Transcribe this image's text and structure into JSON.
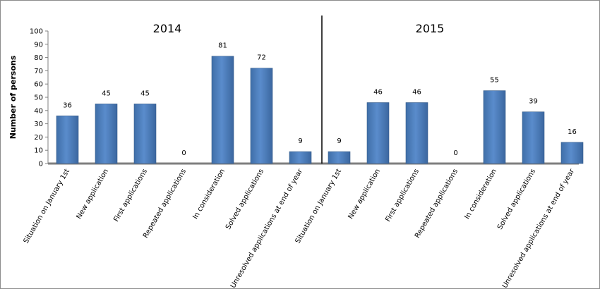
{
  "chart_data": {
    "type": "bar",
    "ylabel": "Number of persons",
    "ylim": [
      0,
      100
    ],
    "yticks": [
      0,
      10,
      20,
      30,
      40,
      50,
      60,
      70,
      80,
      90,
      100
    ],
    "grid": false,
    "legend": "none",
    "bar_color": "#4f81bd",
    "panels": [
      {
        "title": "2014",
        "categories": [
          "Situation on January 1st",
          "New application",
          "First applications",
          "Repeated applications",
          "In consideration",
          "Solved applications",
          "Unresolved applications at end of year"
        ],
        "values": [
          36,
          45,
          45,
          0,
          81,
          72,
          9
        ]
      },
      {
        "title": "2015",
        "categories": [
          "Situation on January 1st",
          "New application",
          "First applications",
          "Repeated applications",
          "In consideration",
          "Solved applications",
          "Unresolved applications at end of year"
        ],
        "values": [
          9,
          46,
          46,
          0,
          55,
          39,
          16
        ]
      }
    ]
  }
}
